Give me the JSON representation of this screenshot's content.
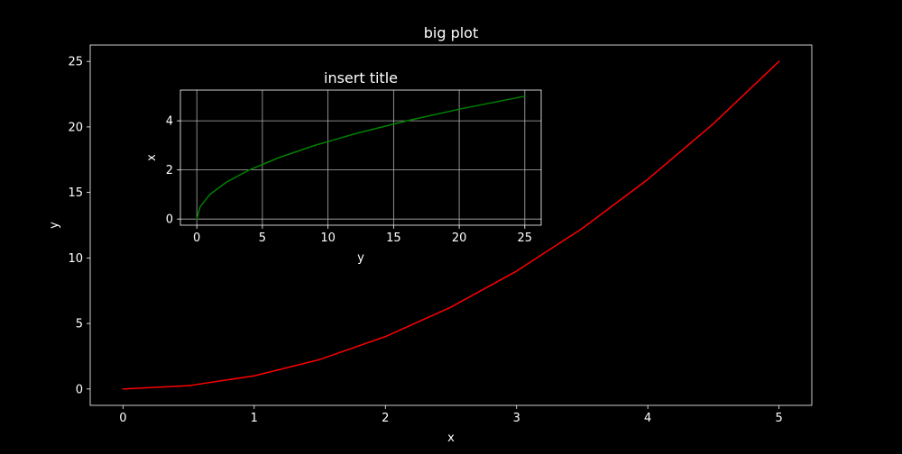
{
  "colors": {
    "background": "#000000",
    "foreground": "#ffffff",
    "main_line": "#ff0000",
    "inset_line": "#008000"
  },
  "chart_data": [
    {
      "type": "line",
      "title": "big plot",
      "xlabel": "x",
      "ylabel": "y",
      "xlim": [
        -0.25,
        5.25
      ],
      "ylim": [
        -1.25,
        26.25
      ],
      "xticks": [
        0,
        1,
        2,
        3,
        4,
        5
      ],
      "yticks": [
        0,
        5,
        10,
        15,
        20,
        25
      ],
      "grid": false,
      "series": [
        {
          "color": "#ff0000",
          "x": [
            0,
            0.5,
            1,
            1.5,
            2,
            2.5,
            3,
            3.5,
            4,
            4.5,
            5
          ],
          "y": [
            0,
            0.25,
            1,
            2.25,
            4,
            6.25,
            9,
            12.25,
            16,
            20.25,
            25
          ]
        }
      ]
    },
    {
      "type": "line",
      "title": "insert title",
      "xlabel": "y",
      "ylabel": "x",
      "xlim": [
        -1.25,
        26.25
      ],
      "ylim": [
        -0.25,
        5.25
      ],
      "xticks": [
        0,
        5,
        10,
        15,
        20,
        25
      ],
      "yticks": [
        0,
        2,
        4
      ],
      "grid": true,
      "series": [
        {
          "color": "#008000",
          "x": [
            0,
            0.25,
            1,
            2.25,
            4,
            6.25,
            9,
            12.25,
            16,
            20.25,
            25
          ],
          "y": [
            0,
            0.5,
            1,
            1.5,
            2,
            2.5,
            3,
            3.5,
            4,
            4.5,
            5
          ]
        }
      ]
    }
  ]
}
